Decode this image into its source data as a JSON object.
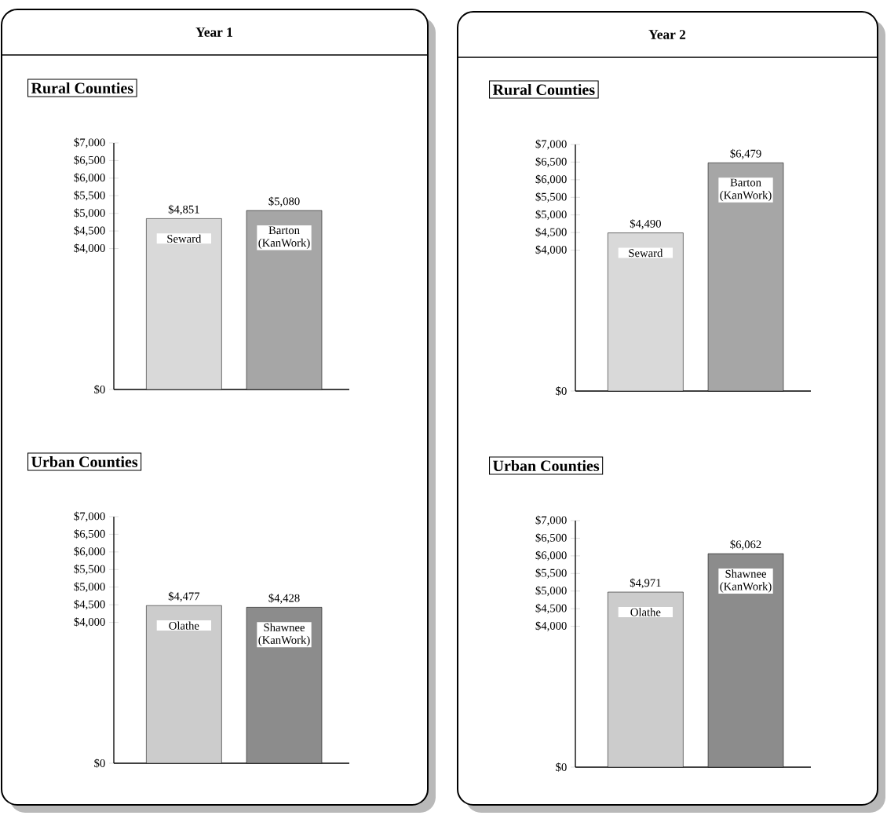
{
  "chart_data": [
    {
      "type": "bar",
      "title": "Year 1",
      "subtitle": "Rural Counties",
      "categories": [
        "Seward",
        "Barton (KanWork)"
      ],
      "values": [
        4851,
        5080
      ],
      "colors": [
        "#d9d9d9",
        "#a6a6a6"
      ],
      "value_labels": [
        "$4,851",
        "$5,080"
      ],
      "ylim": [
        0,
        7000
      ],
      "yticks": [
        {
          "value": 0,
          "label": "$0"
        },
        {
          "value": 4000,
          "label": "$4,000"
        },
        {
          "value": 4500,
          "label": "$4,500"
        },
        {
          "value": 5000,
          "label": "$5,000"
        },
        {
          "value": 5500,
          "label": "$5,500"
        },
        {
          "value": 6000,
          "label": "$6,000"
        },
        {
          "value": 6500,
          "label": "$6,500"
        },
        {
          "value": 7000,
          "label": "$7,000"
        }
      ]
    },
    {
      "type": "bar",
      "title": "Year 2",
      "subtitle": "Rural Counties",
      "categories": [
        "Seward",
        "Barton (KanWork)"
      ],
      "values": [
        4490,
        6479
      ],
      "colors": [
        "#d9d9d9",
        "#a6a6a6"
      ],
      "value_labels": [
        "$4,490",
        "$6,479"
      ],
      "ylim": [
        0,
        7000
      ],
      "yticks": [
        {
          "value": 0,
          "label": "$0"
        },
        {
          "value": 4000,
          "label": "$4,000"
        },
        {
          "value": 4500,
          "label": "$4,500"
        },
        {
          "value": 5000,
          "label": "$5,000"
        },
        {
          "value": 5500,
          "label": "$5,500"
        },
        {
          "value": 6000,
          "label": "$6,000"
        },
        {
          "value": 6500,
          "label": "$6,500"
        },
        {
          "value": 7000,
          "label": "$7,000"
        }
      ]
    },
    {
      "type": "bar",
      "title": "Urban Counties",
      "categories": [
        "Olathe",
        "Shawnee (KanWork)"
      ],
      "values": [
        4477,
        4428
      ],
      "colors": [
        "#cccccc",
        "#8c8c8c"
      ],
      "value_labels": [
        "$4,477",
        "$4,428"
      ],
      "ylim": [
        0,
        7000
      ],
      "yticks": [
        {
          "value": 0,
          "label": "$0"
        },
        {
          "value": 4000,
          "label": "$4,000"
        },
        {
          "value": 4500,
          "label": "$4,500"
        },
        {
          "value": 5000,
          "label": "$5,000"
        },
        {
          "value": 5500,
          "label": "$5,500"
        },
        {
          "value": 6000,
          "label": "$6,000"
        },
        {
          "value": 6500,
          "label": "$6,500"
        },
        {
          "value": 7000,
          "label": "$7,000"
        }
      ]
    },
    {
      "type": "bar",
      "title": "Urban Counties",
      "categories": [
        "Olathe",
        "Shawnee (KanWork)"
      ],
      "values": [
        4971,
        6062
      ],
      "colors": [
        "#cccccc",
        "#8c8c8c"
      ],
      "value_labels": [
        "$4,971",
        "$6,062"
      ],
      "ylim": [
        0,
        7000
      ],
      "yticks": [
        {
          "value": 0,
          "label": "$0"
        },
        {
          "value": 4000,
          "label": "$4,000"
        },
        {
          "value": 4500,
          "label": "$4,500"
        },
        {
          "value": 5000,
          "label": "$5,000"
        },
        {
          "value": 5500,
          "label": "$5,500"
        },
        {
          "value": 6000,
          "label": "$6,000"
        },
        {
          "value": 6500,
          "label": "$6,500"
        },
        {
          "value": 7000,
          "label": "$7,000"
        }
      ]
    }
  ]
}
